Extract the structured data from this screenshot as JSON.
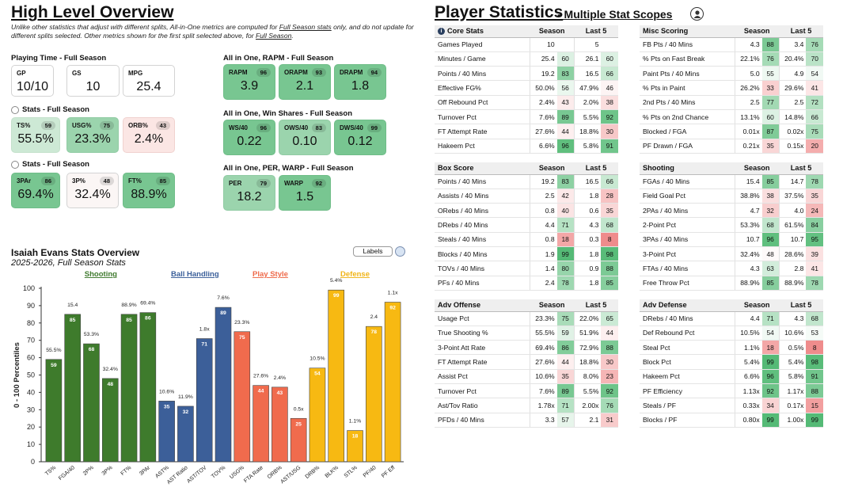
{
  "overview": {
    "title": "High Level Overview",
    "note_parts": [
      "Unlike other statistics that adjust with different splits, All-in-One metrics are computed for ",
      "Full Season stats",
      " only, and do not update for different splits selected. Other metrics shown for the first split selected above, for ",
      "Full Season",
      "."
    ],
    "playing_time": {
      "label": "Playing Time - Full Season",
      "cards": [
        {
          "label": "GP",
          "value": "10/10"
        },
        {
          "label": "GS",
          "value": "10"
        },
        {
          "label": "MPG",
          "value": "25.4"
        }
      ]
    },
    "stats1": {
      "label": "Stats - Full Season",
      "cards": [
        {
          "label": "TS%",
          "pct": "59",
          "value": "55.5%"
        },
        {
          "label": "USG%",
          "pct": "75",
          "value": "23.3%"
        },
        {
          "label": "ORB%",
          "pct": "43",
          "value": "2.4%"
        }
      ]
    },
    "stats2": {
      "label": "Stats - Full Season",
      "cards": [
        {
          "label": "3PAr",
          "pct": "86",
          "value": "69.4%"
        },
        {
          "label": "3P%",
          "pct": "48",
          "value": "32.4%"
        },
        {
          "label": "FT%",
          "pct": "85",
          "value": "88.9%"
        }
      ]
    },
    "rapm": {
      "label": "All in One, RAPM - Full Season",
      "cards": [
        {
          "label": "RAPM",
          "pct": "96",
          "value": "3.9"
        },
        {
          "label": "ORAPM",
          "pct": "93",
          "value": "2.1"
        },
        {
          "label": "DRAPM",
          "pct": "94",
          "value": "1.8"
        }
      ]
    },
    "ws": {
      "label": "All in One, Win Shares - Full Season",
      "cards": [
        {
          "label": "WS/40",
          "pct": "96",
          "value": "0.22"
        },
        {
          "label": "OWS/40",
          "pct": "83",
          "value": "0.10"
        },
        {
          "label": "DWS/40",
          "pct": "99",
          "value": "0.12"
        }
      ]
    },
    "per": {
      "label": "All in One, PER, WARP - Full Season",
      "cards": [
        {
          "label": "PER",
          "pct": "79",
          "value": "18.2"
        },
        {
          "label": "WARP",
          "pct": "92",
          "value": "1.5"
        }
      ]
    }
  },
  "chart_header": {
    "title": "Isaiah Evans Stats Overview",
    "subtitle": "2025-2026, Full Season Stats",
    "labels_button": "Labels"
  },
  "chart_data": {
    "type": "bar",
    "ylabel": "0 - 100 Percentiles",
    "ylim": [
      0,
      100
    ],
    "yticks": [
      0,
      10,
      20,
      30,
      40,
      50,
      60,
      70,
      80,
      90,
      100
    ],
    "groups": [
      {
        "name": "Shooting",
        "color": "#3f7a2e",
        "bar_color": "#3e7b2c"
      },
      {
        "name": "Ball Handling",
        "color": "#3a5f9a",
        "bar_color": "#3c5f99"
      },
      {
        "name": "Play Style",
        "color": "#ee6a4a",
        "bar_color": "#f06b4d"
      },
      {
        "name": "Defense",
        "color": "#f0b418",
        "bar_color": "#f7b912"
      }
    ],
    "bars": [
      {
        "category": "TS%",
        "value": 59,
        "stat": "55.5%",
        "group": 0
      },
      {
        "category": "FGA/40",
        "value": 85,
        "stat": "15.4",
        "group": 0
      },
      {
        "category": "2P%",
        "value": 68,
        "stat": "53.3%",
        "group": 0
      },
      {
        "category": "3P%",
        "value": 48,
        "stat": "32.4%",
        "group": 0
      },
      {
        "category": "FT%",
        "value": 85,
        "stat": "88.9%",
        "group": 0
      },
      {
        "category": "3PAr",
        "value": 86,
        "stat": "69.4%",
        "group": 0
      },
      {
        "category": "AST%",
        "value": 35,
        "stat": "10.6%",
        "group": 1
      },
      {
        "category": "AST Ratio",
        "value": 32,
        "stat": "11.9%",
        "group": 1
      },
      {
        "category": "AST/TOV",
        "value": 71,
        "stat": "1.8x",
        "group": 1
      },
      {
        "category": "TOV%",
        "value": 89,
        "stat": "7.6%",
        "group": 1
      },
      {
        "category": "USG%",
        "value": 75,
        "stat": "23.3%",
        "group": 2
      },
      {
        "category": "FTA Rate",
        "value": 44,
        "stat": "27.6%",
        "group": 2
      },
      {
        "category": "ORB%",
        "value": 43,
        "stat": "2.4%",
        "group": 2
      },
      {
        "category": "AST/USG",
        "value": 25,
        "stat": "0.5x",
        "group": 2
      },
      {
        "category": "DRB%",
        "value": 54,
        "stat": "10.5%",
        "group": 3
      },
      {
        "category": "BLK%",
        "value": 99,
        "stat": "5.4%",
        "group": 3
      },
      {
        "category": "STL%",
        "value": 18,
        "stat": "1.1%",
        "group": 3
      },
      {
        "category": "PF/40",
        "value": 78,
        "stat": "2.4",
        "group": 3
      },
      {
        "category": "PF Eff",
        "value": 92,
        "stat": "1.1x",
        "group": 3
      }
    ]
  },
  "player_stats": {
    "title": "Player Statistics",
    "subtitle": "- Multiple Stat Scopes",
    "season_header": "Season",
    "last5_header": "Last 5",
    "tables": [
      {
        "name": "Core Stats",
        "rows": [
          [
            "Games Played",
            "10",
            "",
            "5",
            ""
          ],
          [
            "Minutes / Game",
            "25.4",
            "60",
            "26.1",
            "60"
          ],
          [
            "Points / 40 Mins",
            "19.2",
            "83",
            "16.5",
            "66"
          ],
          [
            "Effective FG%",
            "50.0%",
            "56",
            "47.9%",
            "46"
          ],
          [
            "Off Rebound Pct",
            "2.4%",
            "43",
            "2.0%",
            "38"
          ],
          [
            "Turnover Pct",
            "7.6%",
            "89",
            "5.5%",
            "92"
          ],
          [
            "FT Attempt Rate",
            "27.6%",
            "44",
            "18.8%",
            "30"
          ],
          [
            "Hakeem Pct",
            "6.6%",
            "96",
            "5.8%",
            "91"
          ]
        ]
      },
      {
        "name": "Misc Scoring",
        "rows": [
          [
            "FB Pts / 40 Mins",
            "4.3",
            "88",
            "3.4",
            "76"
          ],
          [
            "% Pts on Fast Break",
            "22.1%",
            "76",
            "20.4%",
            "70"
          ],
          [
            "Paint Pts / 40 Mins",
            "5.0",
            "55",
            "4.9",
            "54"
          ],
          [
            "% Pts in Paint",
            "26.2%",
            "33",
            "29.6%",
            "41"
          ],
          [
            "2nd Pts / 40 Mins",
            "2.5",
            "77",
            "2.5",
            "72"
          ],
          [
            "% Pts on 2nd Chance",
            "13.1%",
            "60",
            "14.8%",
            "66"
          ],
          [
            "Blocked / FGA",
            "0.01x",
            "87",
            "0.02x",
            "75"
          ],
          [
            "PF Drawn / FGA",
            "0.21x",
            "35",
            "0.15x",
            "20"
          ]
        ]
      },
      {
        "name": "Box Score",
        "rows": [
          [
            "Points / 40 Mins",
            "19.2",
            "83",
            "16.5",
            "66"
          ],
          [
            "Assists / 40 Mins",
            "2.5",
            "42",
            "1.8",
            "28"
          ],
          [
            "ORebs / 40 Mins",
            "0.8",
            "40",
            "0.6",
            "35"
          ],
          [
            "DRebs / 40 Mins",
            "4.4",
            "71",
            "4.3",
            "68"
          ],
          [
            "Steals / 40 Mins",
            "0.8",
            "18",
            "0.3",
            "8"
          ],
          [
            "Blocks / 40 Mins",
            "1.9",
            "99",
            "1.8",
            "98"
          ],
          [
            "TOVs / 40 Mins",
            "1.4",
            "80",
            "0.9",
            "88"
          ],
          [
            "PFs / 40 Mins",
            "2.4",
            "78",
            "1.8",
            "85"
          ]
        ]
      },
      {
        "name": "Shooting",
        "rows": [
          [
            "FGAs / 40 Mins",
            "15.4",
            "85",
            "14.7",
            "78"
          ],
          [
            "Field Goal Pct",
            "38.8%",
            "38",
            "37.5%",
            "35"
          ],
          [
            "2PAs / 40 Mins",
            "4.7",
            "32",
            "4.0",
            "24"
          ],
          [
            "2-Point Pct",
            "53.3%",
            "68",
            "61.5%",
            "84"
          ],
          [
            "3PAs / 40 Mins",
            "10.7",
            "96",
            "10.7",
            "95"
          ],
          [
            "3-Point Pct",
            "32.4%",
            "48",
            "28.6%",
            "39"
          ],
          [
            "FTAs / 40 Mins",
            "4.3",
            "63",
            "2.8",
            "41"
          ],
          [
            "Free Throw Pct",
            "88.9%",
            "85",
            "88.9%",
            "78"
          ]
        ]
      },
      {
        "name": "Adv Offense",
        "rows": [
          [
            "Usage Pct",
            "23.3%",
            "75",
            "22.0%",
            "65"
          ],
          [
            "True Shooting %",
            "55.5%",
            "59",
            "51.9%",
            "44"
          ],
          [
            "3-Point Att Rate",
            "69.4%",
            "86",
            "72.9%",
            "88"
          ],
          [
            "FT Attempt Rate",
            "27.6%",
            "44",
            "18.8%",
            "30"
          ],
          [
            "Assist Pct",
            "10.6%",
            "35",
            "8.0%",
            "23"
          ],
          [
            "Turnover Pct",
            "7.6%",
            "89",
            "5.5%",
            "92"
          ],
          [
            "Ast/Tov Ratio",
            "1.78x",
            "71",
            "2.00x",
            "76"
          ],
          [
            "PFDs / 40 Mins",
            "3.3",
            "57",
            "2.1",
            "31"
          ]
        ]
      },
      {
        "name": "Adv Defense",
        "rows": [
          [
            "DRebs / 40 Mins",
            "4.4",
            "71",
            "4.3",
            "68"
          ],
          [
            "Def Rebound Pct",
            "10.5%",
            "54",
            "10.6%",
            "53"
          ],
          [
            "Steal Pct",
            "1.1%",
            "18",
            "0.5%",
            "8"
          ],
          [
            "Block Pct",
            "5.4%",
            "99",
            "5.4%",
            "98"
          ],
          [
            "Hakeem Pct",
            "6.6%",
            "96",
            "5.8%",
            "91"
          ],
          [
            "PF Efficiency",
            "1.13x",
            "92",
            "1.17x",
            "88"
          ],
          [
            "Steals / PF",
            "0.33x",
            "34",
            "0.17x",
            "15"
          ],
          [
            "Blocks / PF",
            "0.80x",
            "99",
            "1.00x",
            "99"
          ]
        ]
      }
    ]
  }
}
